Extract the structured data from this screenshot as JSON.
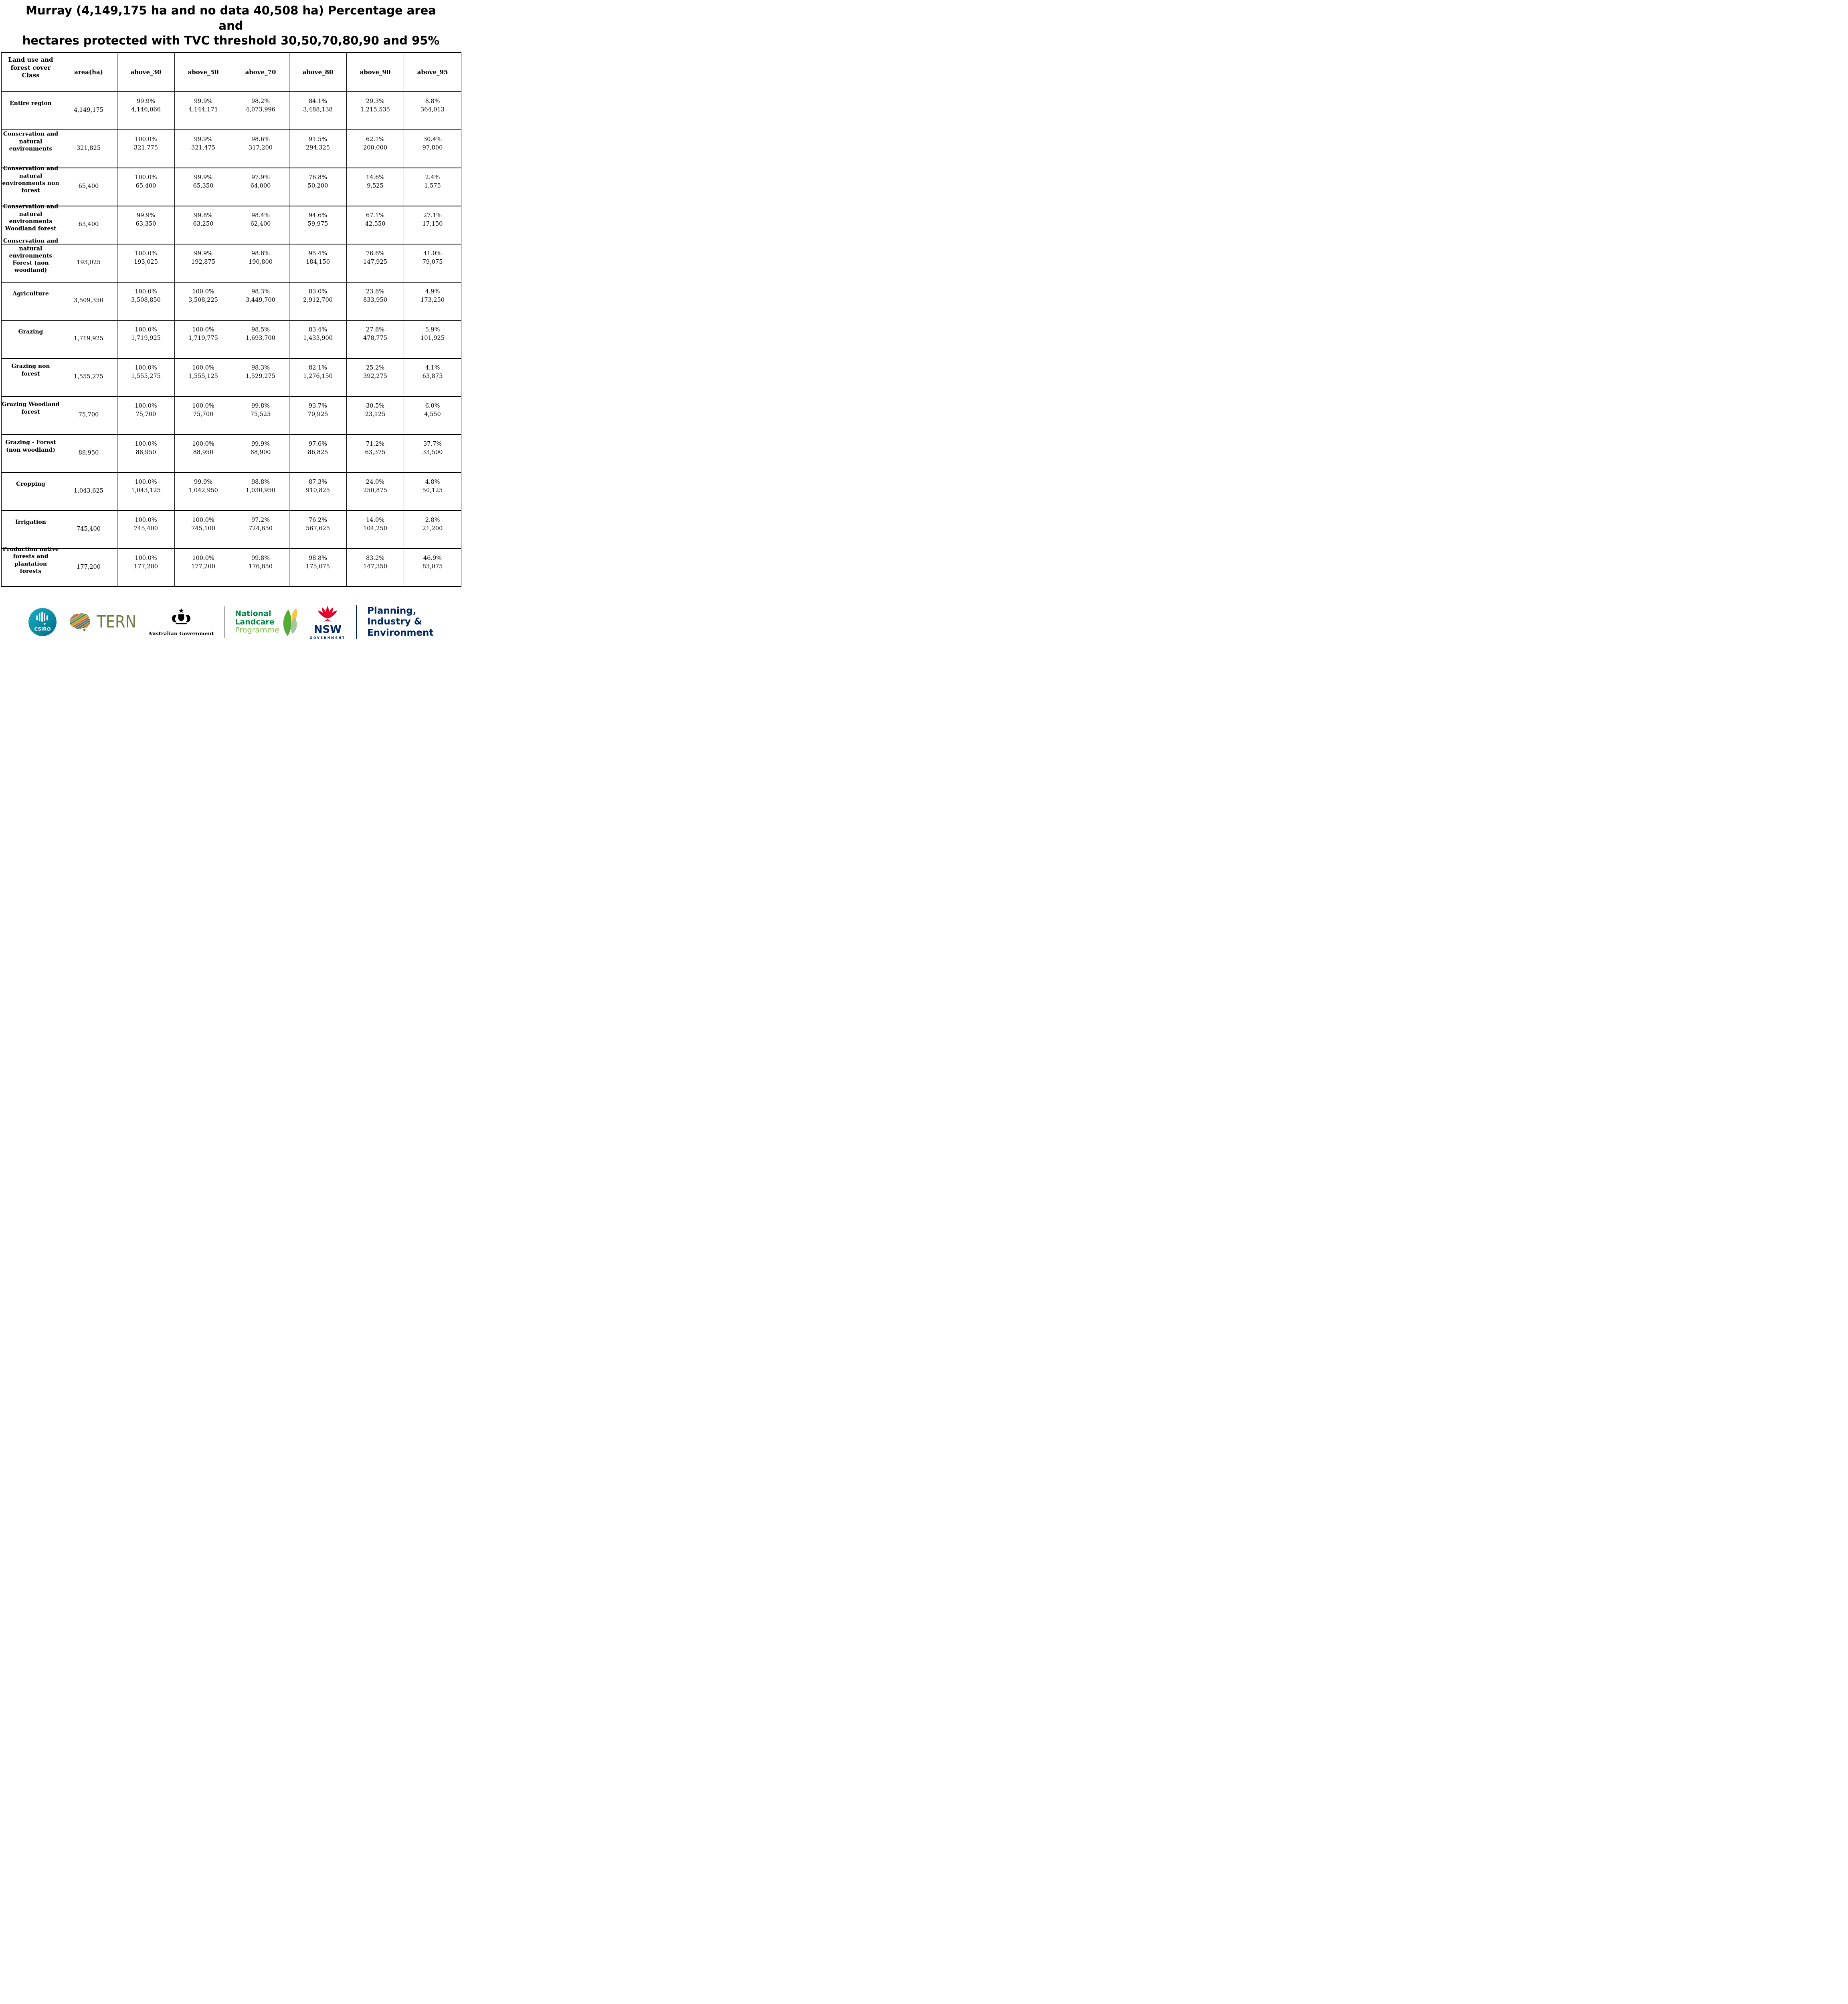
{
  "title": {
    "line1": "Murray (4,149,175 ha and no data 40,508 ha) Percentage area and",
    "line2": "hectares protected with TVC threshold 30,50,70,80,90 and 95%"
  },
  "table": {
    "columns": [
      "Land use and forest cover Class",
      "area(ha)",
      "above_30",
      "above_50",
      "above_70",
      "above_80",
      "above_90",
      "above_95"
    ],
    "rows": [
      {
        "label_lines": [
          "Entire region"
        ],
        "area": "4,149,175",
        "cells": [
          {
            "pct": "99.9%",
            "ha": "4,146,066"
          },
          {
            "pct": "99.9%",
            "ha": "4,144,171"
          },
          {
            "pct": "98.2%",
            "ha": "4,073,996"
          },
          {
            "pct": "84.1%",
            "ha": "3,488,138"
          },
          {
            "pct": "29.3%",
            "ha": "1,215,535"
          },
          {
            "pct": "8.8%",
            "ha": "364,013"
          }
        ]
      },
      {
        "label_lines": [
          "Conservation and",
          "natural",
          "environments"
        ],
        "area": "321,825",
        "cells": [
          {
            "pct": "100.0%",
            "ha": "321,775"
          },
          {
            "pct": "99.9%",
            "ha": "321,475"
          },
          {
            "pct": "98.6%",
            "ha": "317,200"
          },
          {
            "pct": "91.5%",
            "ha": "294,325"
          },
          {
            "pct": "62.1%",
            "ha": "200,000"
          },
          {
            "pct": "30.4%",
            "ha": "97,800"
          }
        ]
      },
      {
        "label_lines": [
          "Conservation and",
          "natural",
          "environments non",
          "forest"
        ],
        "area": "65,400",
        "cells": [
          {
            "pct": "100.0%",
            "ha": "65,400"
          },
          {
            "pct": "99.9%",
            "ha": "65,350"
          },
          {
            "pct": "97.9%",
            "ha": "64,000"
          },
          {
            "pct": "76.8%",
            "ha": "50,200"
          },
          {
            "pct": "14.6%",
            "ha": "9,525"
          },
          {
            "pct": "2.4%",
            "ha": "1,575"
          }
        ]
      },
      {
        "label_lines": [
          "Conservation and",
          "natural",
          "environments",
          "Woodland forest"
        ],
        "area": "63,400",
        "cells": [
          {
            "pct": "99.9%",
            "ha": "63,350"
          },
          {
            "pct": "99.8%",
            "ha": "63,250"
          },
          {
            "pct": "98.4%",
            "ha": "62,400"
          },
          {
            "pct": "94.6%",
            "ha": "59,975"
          },
          {
            "pct": "67.1%",
            "ha": "42,550"
          },
          {
            "pct": "27.1%",
            "ha": "17,150"
          }
        ]
      },
      {
        "label_lines": [
          "Conservation and",
          "natural",
          "environments",
          "Forest (non",
          "woodland)"
        ],
        "area": "193,025",
        "cells": [
          {
            "pct": "100.0%",
            "ha": "193,025"
          },
          {
            "pct": "99.9%",
            "ha": "192,875"
          },
          {
            "pct": "98.8%",
            "ha": "190,800"
          },
          {
            "pct": "95.4%",
            "ha": "184,150"
          },
          {
            "pct": "76.6%",
            "ha": "147,925"
          },
          {
            "pct": "41.0%",
            "ha": "79,075"
          }
        ]
      },
      {
        "label_lines": [
          "Agriculture"
        ],
        "area": "3,509,350",
        "cells": [
          {
            "pct": "100.0%",
            "ha": "3,508,850"
          },
          {
            "pct": "100.0%",
            "ha": "3,508,225"
          },
          {
            "pct": "98.3%",
            "ha": "3,449,700"
          },
          {
            "pct": "83.0%",
            "ha": "2,912,700"
          },
          {
            "pct": "23.8%",
            "ha": "833,950"
          },
          {
            "pct": "4.9%",
            "ha": "173,250"
          }
        ]
      },
      {
        "label_lines": [
          "Grazing"
        ],
        "area": "1,719,925",
        "cells": [
          {
            "pct": "100.0%",
            "ha": "1,719,925"
          },
          {
            "pct": "100.0%",
            "ha": "1,719,775"
          },
          {
            "pct": "98.5%",
            "ha": "1,693,700"
          },
          {
            "pct": "83.4%",
            "ha": "1,433,900"
          },
          {
            "pct": "27.8%",
            "ha": "478,775"
          },
          {
            "pct": "5.9%",
            "ha": "101,925"
          }
        ]
      },
      {
        "label_lines": [
          "Grazing non",
          "forest"
        ],
        "area": "1,555,275",
        "cells": [
          {
            "pct": "100.0%",
            "ha": "1,555,275"
          },
          {
            "pct": "100.0%",
            "ha": "1,555,125"
          },
          {
            "pct": "98.3%",
            "ha": "1,529,275"
          },
          {
            "pct": "82.1%",
            "ha": "1,276,150"
          },
          {
            "pct": "25.2%",
            "ha": "392,275"
          },
          {
            "pct": "4.1%",
            "ha": "63,875"
          }
        ]
      },
      {
        "label_lines": [
          "Grazing Woodland",
          "forest"
        ],
        "area": "75,700",
        "cells": [
          {
            "pct": "100.0%",
            "ha": "75,700"
          },
          {
            "pct": "100.0%",
            "ha": "75,700"
          },
          {
            "pct": "99.8%",
            "ha": "75,525"
          },
          {
            "pct": "93.7%",
            "ha": "70,925"
          },
          {
            "pct": "30.5%",
            "ha": "23,125"
          },
          {
            "pct": "6.0%",
            "ha": "4,550"
          }
        ]
      },
      {
        "label_lines": [
          "Grazing - Forest",
          "(non woodland)"
        ],
        "area": "88,950",
        "cells": [
          {
            "pct": "100.0%",
            "ha": "88,950"
          },
          {
            "pct": "100.0%",
            "ha": "88,950"
          },
          {
            "pct": "99.9%",
            "ha": "88,900"
          },
          {
            "pct": "97.6%",
            "ha": "86,825"
          },
          {
            "pct": "71.2%",
            "ha": "63,375"
          },
          {
            "pct": "37.7%",
            "ha": "33,500"
          }
        ]
      },
      {
        "label_lines": [
          "Cropping"
        ],
        "area": "1,043,625",
        "cells": [
          {
            "pct": "100.0%",
            "ha": "1,043,125"
          },
          {
            "pct": "99.9%",
            "ha": "1,042,950"
          },
          {
            "pct": "98.8%",
            "ha": "1,030,950"
          },
          {
            "pct": "87.3%",
            "ha": "910,825"
          },
          {
            "pct": "24.0%",
            "ha": "250,875"
          },
          {
            "pct": "4.8%",
            "ha": "50,125"
          }
        ]
      },
      {
        "label_lines": [
          "Irrigation"
        ],
        "area": "745,400",
        "cells": [
          {
            "pct": "100.0%",
            "ha": "745,400"
          },
          {
            "pct": "100.0%",
            "ha": "745,100"
          },
          {
            "pct": "97.2%",
            "ha": "724,650"
          },
          {
            "pct": "76.2%",
            "ha": "567,625"
          },
          {
            "pct": "14.0%",
            "ha": "104,250"
          },
          {
            "pct": "2.8%",
            "ha": "21,200"
          }
        ]
      },
      {
        "label_lines": [
          "Production native",
          "forests and",
          "plantation",
          "forests"
        ],
        "area": "177,200",
        "cells": [
          {
            "pct": "100.0%",
            "ha": "177,200"
          },
          {
            "pct": "100.0%",
            "ha": "177,200"
          },
          {
            "pct": "99.8%",
            "ha": "176,850"
          },
          {
            "pct": "98.8%",
            "ha": "175,075"
          },
          {
            "pct": "83.2%",
            "ha": "147,350"
          },
          {
            "pct": "46.9%",
            "ha": "83,075"
          }
        ]
      }
    ]
  },
  "footer": {
    "csiro": {
      "label": "CSIRO"
    },
    "tern": {
      "label": "TERN"
    },
    "aus_gov": {
      "label": "Australian Government"
    },
    "landcare": {
      "line1": "National",
      "line2": "Landcare",
      "line3": "Programme"
    },
    "nsw": {
      "label": "NSW",
      "sub": "GOVERNMENT"
    },
    "planning": {
      "line1": "Planning,",
      "line2": "Industry &",
      "line3": "Environment"
    }
  },
  "colors": {
    "csiro_teal_light": "#1ab0c9",
    "csiro_teal_dark": "#006b82",
    "tern_olive": "#6d7c3f",
    "landcare_green": "#008542",
    "landcare_light_green": "#7ac143",
    "nsw_red": "#e4002b",
    "nsw_navy": "#002664"
  }
}
